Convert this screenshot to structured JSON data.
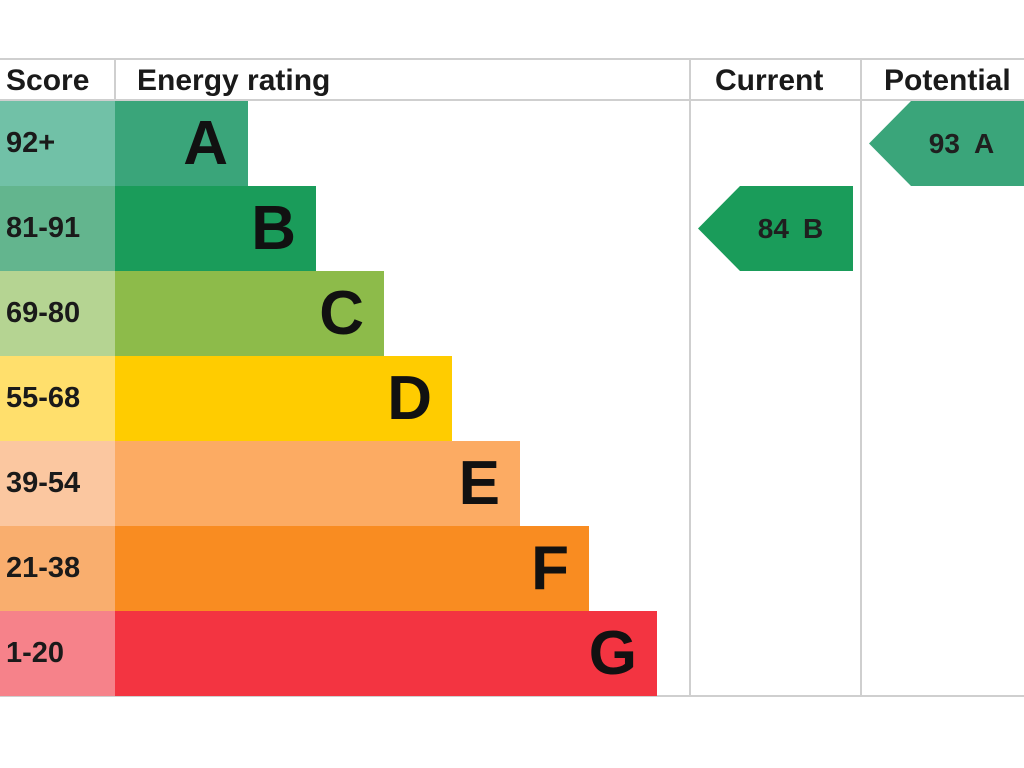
{
  "headers": {
    "score": "Score",
    "energy_rating": "Energy rating",
    "current": "Current",
    "potential": "Potential"
  },
  "chart_data": {
    "type": "bar",
    "title": "",
    "categories": [
      "A",
      "B",
      "C",
      "D",
      "E",
      "F",
      "G"
    ],
    "score_ranges": [
      "92+",
      "81-91",
      "69-80",
      "55-68",
      "39-54",
      "21-38",
      "1-20"
    ],
    "band_colors": [
      "#3aa57a",
      "#1a9c5a",
      "#8dbb4a",
      "#ffcc00",
      "#fcab63",
      "#f98c21",
      "#f33441"
    ],
    "score_cell_colors": [
      "#71c1a7",
      "#63b58e",
      "#b5d492",
      "#ffdf6c",
      "#fbc7a0",
      "#f9ae6e",
      "#f6828a"
    ],
    "current": {
      "score": "84",
      "rating": "B",
      "color": "#1a9c5a"
    },
    "potential": {
      "score": "93",
      "rating": "A",
      "color": "#3aa57a"
    }
  }
}
